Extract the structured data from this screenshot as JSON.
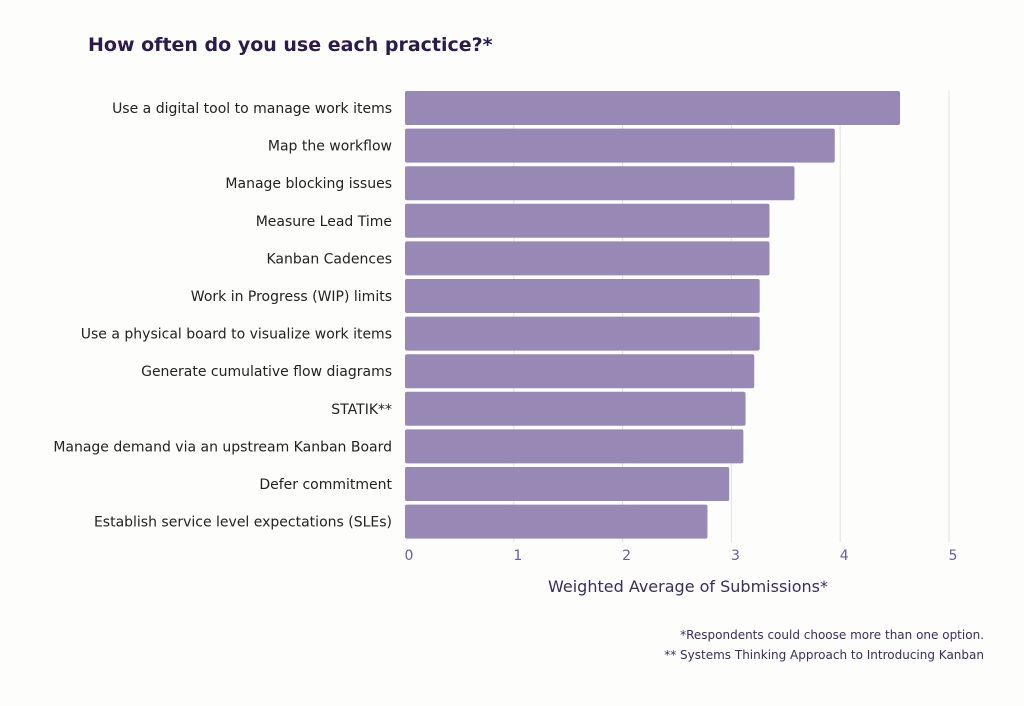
{
  "chart_data": {
    "type": "bar",
    "orientation": "horizontal",
    "title": "How often do you use each practice?*",
    "xlabel": "Weighted Average of Submissions*",
    "ylabel": "",
    "xlim": [
      0,
      5
    ],
    "ticks": [
      "0",
      "1",
      "2",
      "3",
      "4",
      "5"
    ],
    "grid": true,
    "categories": [
      "Use a digital tool to manage work items",
      "Map the workflow",
      "Manage blocking issues",
      "Measure Lead Time",
      "Kanban Cadences",
      "Work in Progress (WIP) limits",
      "Use a physical board to visualize work items",
      "Generate cumulative flow diagrams",
      "STATIK**",
      "Manage demand via an upstream Kanban Board",
      "Defer commitment",
      "Establish service level expectations (SLEs)"
    ],
    "values": [
      4.55,
      3.95,
      3.58,
      3.35,
      3.35,
      3.26,
      3.26,
      3.21,
      3.13,
      3.11,
      2.98,
      2.78
    ],
    "colors": {
      "bar": "#9788b6",
      "tick": "#6b5ba3",
      "title": "#2b1a4a",
      "grid": "#e2e2e2"
    }
  },
  "footnotes": [
    "*Respondents could choose more than one option.",
    "** Systems Thinking Approach to Introducing Kanban"
  ]
}
